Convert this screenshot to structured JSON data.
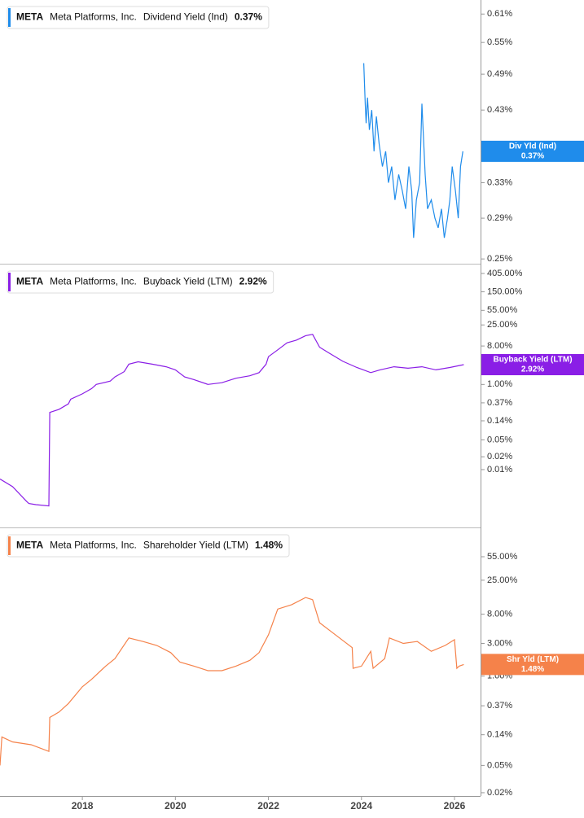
{
  "chart_data": [
    {
      "type": "line",
      "log_scale": true,
      "ticker": "META",
      "company": "Meta Platforms, Inc.",
      "ylim": [
        0.2457,
        0.642
      ],
      "yticks": [
        {
          "value": 0.61,
          "label": "0.61%"
        },
        {
          "value": 0.55,
          "label": "0.55%"
        },
        {
          "value": 0.49,
          "label": "0.49%"
        },
        {
          "value": 0.43,
          "label": "0.43%"
        },
        {
          "value": 0.37,
          "label": "0.37%"
        },
        {
          "value": 0.33,
          "label": "0.33%"
        },
        {
          "value": 0.29,
          "label": "0.29%"
        },
        {
          "value": 0.25,
          "label": "0.25%"
        }
      ],
      "series": [
        {
          "name": "Dividend Yield (Ind)",
          "short_name": "Div Yld (Ind)",
          "color": "#1f8ceb",
          "last_value_label": "0.37%",
          "x": [
            2024.05,
            2024.08,
            2024.1,
            2024.13,
            2024.17,
            2024.22,
            2024.27,
            2024.32,
            2024.38,
            2024.45,
            2024.52,
            2024.58,
            2024.65,
            2024.72,
            2024.8,
            2024.88,
            2024.95,
            2025.02,
            2025.08,
            2025.12,
            2025.18,
            2025.25,
            2025.3,
            2025.37,
            2025.42,
            2025.5,
            2025.58,
            2025.65,
            2025.72,
            2025.78,
            2025.85,
            2025.9,
            2025.95,
            2026.02,
            2026.08,
            2026.13,
            2026.18
          ],
          "values": [
            0.51,
            0.44,
            0.41,
            0.45,
            0.4,
            0.43,
            0.37,
            0.42,
            0.38,
            0.35,
            0.37,
            0.33,
            0.35,
            0.31,
            0.34,
            0.32,
            0.3,
            0.35,
            0.32,
            0.27,
            0.31,
            0.33,
            0.44,
            0.34,
            0.3,
            0.31,
            0.29,
            0.28,
            0.3,
            0.27,
            0.29,
            0.31,
            0.35,
            0.32,
            0.29,
            0.35,
            0.37
          ]
        }
      ]
    },
    {
      "type": "line",
      "log_scale": true,
      "ticker": "META",
      "company": "Meta Platforms, Inc.",
      "ylim": [
        0.000438,
        656
      ],
      "yticks": [
        {
          "value": 405,
          "label": "405.00%"
        },
        {
          "value": 150,
          "label": "150.00%"
        },
        {
          "value": 55,
          "label": "55.00%"
        },
        {
          "value": 25,
          "label": "25.00%"
        },
        {
          "value": 8,
          "label": "8.00%"
        },
        {
          "value": 1,
          "label": "1.00%"
        },
        {
          "value": 0.37,
          "label": "0.37%"
        },
        {
          "value": 0.14,
          "label": "0.14%"
        },
        {
          "value": 0.05,
          "label": "0.05%"
        },
        {
          "value": 0.02,
          "label": "0.02%"
        },
        {
          "value": 0.01,
          "label": "0.01%"
        }
      ],
      "series": [
        {
          "name": "Buyback Yield (LTM)",
          "short_name": "Buyback Yield (LTM)",
          "color": "#8a1ee6",
          "last_value_label": "2.92%",
          "x": [
            2016.23,
            2016.5,
            2016.8,
            2016.85,
            2017.0,
            2017.28,
            2017.3,
            2017.5,
            2017.7,
            2017.75,
            2018.0,
            2018.2,
            2018.3,
            2018.6,
            2018.7,
            2018.9,
            2019.0,
            2019.2,
            2019.5,
            2019.8,
            2020.0,
            2020.2,
            2020.4,
            2020.7,
            2021.0,
            2021.3,
            2021.6,
            2021.8,
            2021.95,
            2022.0,
            2022.2,
            2022.4,
            2022.6,
            2022.8,
            2022.95,
            2023.1,
            2023.3,
            2023.6,
            2023.9,
            2024.2,
            2024.4,
            2024.7,
            2025.0,
            2025.3,
            2025.6,
            2025.9,
            2026.2
          ],
          "values": [
            0.006,
            0.004,
            0.0018,
            0.0016,
            0.0015,
            0.0014,
            0.22,
            0.26,
            0.35,
            0.45,
            0.6,
            0.8,
            1.0,
            1.2,
            1.5,
            2.0,
            3.0,
            3.4,
            3.0,
            2.6,
            2.2,
            1.5,
            1.3,
            1.0,
            1.1,
            1.4,
            1.6,
            1.9,
            3.0,
            4.5,
            6.5,
            9.5,
            11,
            14,
            15,
            7.5,
            5.5,
            3.5,
            2.5,
            1.9,
            2.2,
            2.6,
            2.4,
            2.6,
            2.2,
            2.5,
            2.92
          ]
        }
      ]
    },
    {
      "type": "line",
      "log_scale": true,
      "ticker": "META",
      "company": "Meta Platforms, Inc.",
      "xlim": [
        2016.23,
        2026.56
      ],
      "xticks": [
        2018,
        2020,
        2022,
        2024,
        2026
      ],
      "ylim": [
        0.0179,
        143
      ],
      "yticks": [
        {
          "value": 55,
          "label": "55.00%"
        },
        {
          "value": 25,
          "label": "25.00%"
        },
        {
          "value": 8,
          "label": "8.00%"
        },
        {
          "value": 3,
          "label": "3.00%"
        },
        {
          "value": 1,
          "label": "1.00%"
        },
        {
          "value": 0.37,
          "label": "0.37%"
        },
        {
          "value": 0.14,
          "label": "0.14%"
        },
        {
          "value": 0.05,
          "label": "0.05%"
        },
        {
          "value": 0.02,
          "label": "0.02%"
        }
      ],
      "series": [
        {
          "name": "Shareholder Yield (LTM)",
          "short_name": "Shr Yld (LTM)",
          "color": "#f5824a",
          "last_value_label": "1.48%",
          "x": [
            2016.23,
            2016.27,
            2016.5,
            2016.9,
            2017.28,
            2017.3,
            2017.5,
            2017.7,
            2018.0,
            2018.2,
            2018.5,
            2018.7,
            2019.0,
            2019.3,
            2019.6,
            2019.9,
            2020.1,
            2020.4,
            2020.7,
            2021.0,
            2021.3,
            2021.6,
            2021.8,
            2022.0,
            2022.2,
            2022.5,
            2022.8,
            2022.95,
            2023.1,
            2023.4,
            2023.8,
            2023.82,
            2024.0,
            2024.2,
            2024.25,
            2024.5,
            2024.6,
            2024.9,
            2025.2,
            2025.5,
            2025.8,
            2026.0,
            2026.05,
            2026.1,
            2026.2
          ],
          "values": [
            0.05,
            0.13,
            0.11,
            0.1,
            0.08,
            0.25,
            0.3,
            0.4,
            0.7,
            0.9,
            1.4,
            1.8,
            3.6,
            3.2,
            2.8,
            2.2,
            1.6,
            1.4,
            1.2,
            1.2,
            1.4,
            1.7,
            2.2,
            4.0,
            9.5,
            11,
            14,
            13,
            6,
            4.2,
            2.6,
            1.3,
            1.4,
            2.3,
            1.3,
            1.8,
            3.6,
            3.0,
            3.2,
            2.3,
            2.8,
            3.4,
            1.3,
            1.4,
            1.48
          ]
        }
      ]
    }
  ]
}
